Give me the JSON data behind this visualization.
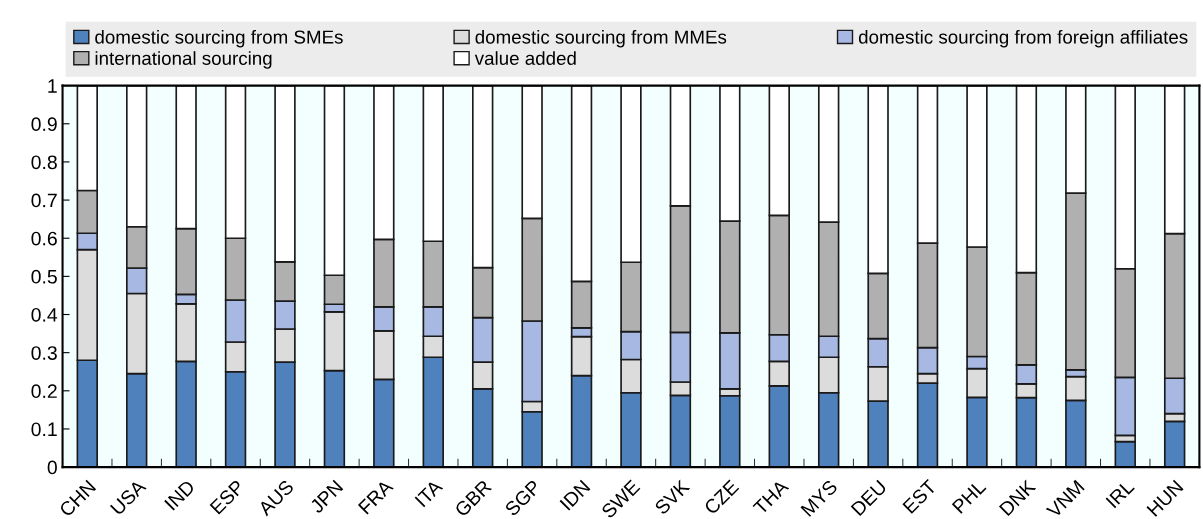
{
  "chart_data": {
    "type": "bar",
    "stacked": true,
    "legend": "top",
    "grid": false,
    "categories": [
      "CHN",
      "USA",
      "IND",
      "ESP",
      "AUS",
      "JPN",
      "FRA",
      "ITA",
      "GBR",
      "SGP",
      "IDN",
      "SWE",
      "SVK",
      "CZE",
      "THA",
      "MYS",
      "DEU",
      "EST",
      "PHL",
      "DNK",
      "VNM",
      "IRL",
      "HUN"
    ],
    "ylim": [
      0,
      1
    ],
    "yticks": [
      0,
      0.1,
      0.2,
      0.3,
      0.4,
      0.5,
      0.6,
      0.7,
      0.8,
      0.9,
      1
    ],
    "series": [
      {
        "name": "domestic sourcing from SMEs",
        "color": "#4f81bd",
        "values": [
          0.28,
          0.245,
          0.277,
          0.25,
          0.275,
          0.253,
          0.23,
          0.288,
          0.205,
          0.145,
          0.24,
          0.195,
          0.188,
          0.187,
          0.213,
          0.195,
          0.173,
          0.22,
          0.183,
          0.182,
          0.175,
          0.067,
          0.12
        ]
      },
      {
        "name": "domestic sourcing from MMEs",
        "color": "#dcdcdc",
        "values": [
          0.29,
          0.21,
          0.151,
          0.078,
          0.087,
          0.154,
          0.127,
          0.055,
          0.07,
          0.027,
          0.102,
          0.087,
          0.035,
          0.018,
          0.064,
          0.093,
          0.09,
          0.025,
          0.075,
          0.036,
          0.062,
          0.016,
          0.02
        ]
      },
      {
        "name": "domestic sourcing from foreign affiliates",
        "color": "#a7b8e2",
        "values": [
          0.043,
          0.067,
          0.025,
          0.11,
          0.073,
          0.02,
          0.063,
          0.077,
          0.117,
          0.211,
          0.023,
          0.073,
          0.13,
          0.147,
          0.07,
          0.055,
          0.074,
          0.068,
          0.032,
          0.05,
          0.018,
          0.152,
          0.093
        ]
      },
      {
        "name": "international sourcing",
        "color": "#b0b0b0",
        "values": [
          0.112,
          0.108,
          0.172,
          0.162,
          0.103,
          0.076,
          0.177,
          0.172,
          0.131,
          0.269,
          0.122,
          0.182,
          0.332,
          0.293,
          0.313,
          0.299,
          0.171,
          0.274,
          0.287,
          0.242,
          0.463,
          0.285,
          0.379
        ]
      },
      {
        "name": "value added",
        "color": "#ffffff",
        "values": [
          0.275,
          0.37,
          0.375,
          0.4,
          0.462,
          0.497,
          0.403,
          0.408,
          0.477,
          0.348,
          0.513,
          0.463,
          0.315,
          0.355,
          0.34,
          0.358,
          0.492,
          0.413,
          0.423,
          0.49,
          0.282,
          0.48,
          0.388
        ]
      }
    ]
  }
}
